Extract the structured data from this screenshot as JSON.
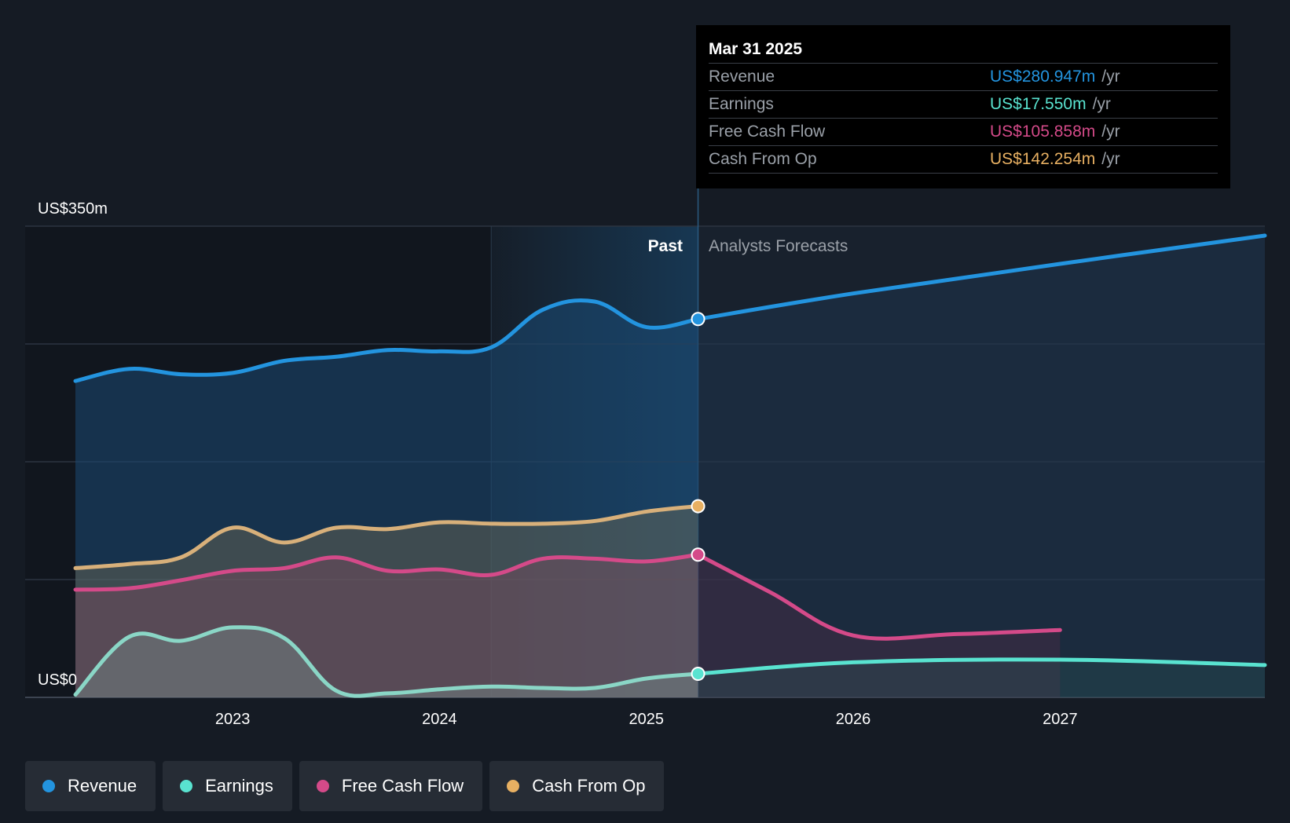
{
  "tooltip": {
    "date": "Mar 31 2025",
    "rows": [
      {
        "label": "Revenue",
        "value": "US$280.947m",
        "unit": "/yr",
        "color": "#2394df"
      },
      {
        "label": "Earnings",
        "value": "US$17.550m",
        "unit": "/yr",
        "color": "#59e3d0"
      },
      {
        "label": "Free Cash Flow",
        "value": "US$105.858m",
        "unit": "/yr",
        "color": "#d44a89"
      },
      {
        "label": "Cash From Op",
        "value": "US$142.254m",
        "unit": "/yr",
        "color": "#e8b062"
      }
    ]
  },
  "legend": [
    {
      "label": "Revenue",
      "color": "#2394df"
    },
    {
      "label": "Earnings",
      "color": "#59e3d0"
    },
    {
      "label": "Free Cash Flow",
      "color": "#d44a89"
    },
    {
      "label": "Cash From Op",
      "color": "#e8b062"
    }
  ],
  "chart_data": {
    "type": "line",
    "y_top_label": "US$350m",
    "y_bottom_label": "US$0",
    "ylim": [
      0,
      350
    ],
    "xlim": [
      2022.24,
      2027.99
    ],
    "x_ticks": [
      2023,
      2024,
      2025,
      2026,
      2027
    ],
    "past_label": "Past",
    "forecast_label": "Analysts Forecasts",
    "divider_x": 2025.25,
    "highlight_start_x": 2024.25,
    "grid": true,
    "series": [
      {
        "name": "Revenue",
        "color": "#2394df",
        "past": [
          [
            2022.24,
            235
          ],
          [
            2022.5,
            244
          ],
          [
            2022.75,
            240
          ],
          [
            2023.0,
            241
          ],
          [
            2023.25,
            250
          ],
          [
            2023.5,
            253
          ],
          [
            2023.75,
            258
          ],
          [
            2024.0,
            257
          ],
          [
            2024.25,
            260
          ],
          [
            2024.5,
            288
          ],
          [
            2024.75,
            294
          ],
          [
            2025.0,
            275
          ],
          [
            2025.25,
            281
          ]
        ],
        "forecast": [
          [
            2025.25,
            281
          ],
          [
            2026.0,
            300
          ],
          [
            2027.0,
            322
          ],
          [
            2027.99,
            343
          ]
        ]
      },
      {
        "name": "Earnings",
        "color": "#59e3d0",
        "past": [
          [
            2022.24,
            2
          ],
          [
            2022.5,
            45
          ],
          [
            2022.75,
            42
          ],
          [
            2023.0,
            52
          ],
          [
            2023.25,
            44
          ],
          [
            2023.5,
            5
          ],
          [
            2023.75,
            3
          ],
          [
            2024.0,
            6
          ],
          [
            2024.25,
            8
          ],
          [
            2024.5,
            7
          ],
          [
            2024.75,
            7
          ],
          [
            2025.0,
            14
          ],
          [
            2025.25,
            17.5
          ]
        ],
        "forecast": [
          [
            2025.25,
            17.5
          ],
          [
            2026.0,
            26
          ],
          [
            2027.0,
            28
          ],
          [
            2027.99,
            24
          ]
        ]
      },
      {
        "name": "Free Cash Flow",
        "color": "#d44a89",
        "past": [
          [
            2022.24,
            80
          ],
          [
            2022.5,
            81
          ],
          [
            2022.75,
            87
          ],
          [
            2023.0,
            94
          ],
          [
            2023.25,
            96
          ],
          [
            2023.5,
            104
          ],
          [
            2023.75,
            94
          ],
          [
            2024.0,
            95
          ],
          [
            2024.25,
            91
          ],
          [
            2024.5,
            103
          ],
          [
            2024.75,
            103
          ],
          [
            2025.0,
            101
          ],
          [
            2025.25,
            106
          ]
        ],
        "forecast": [
          [
            2025.25,
            106
          ],
          [
            2025.6,
            78
          ],
          [
            2026.0,
            46
          ],
          [
            2026.5,
            47
          ],
          [
            2027.0,
            50
          ]
        ]
      },
      {
        "name": "Cash From Op",
        "color": "#e8b062",
        "past": [
          [
            2022.24,
            96
          ],
          [
            2022.5,
            99
          ],
          [
            2022.75,
            104
          ],
          [
            2023.0,
            126
          ],
          [
            2023.25,
            115
          ],
          [
            2023.5,
            126
          ],
          [
            2023.75,
            125
          ],
          [
            2024.0,
            130
          ],
          [
            2024.25,
            129
          ],
          [
            2024.5,
            129
          ],
          [
            2024.75,
            131
          ],
          [
            2025.0,
            138
          ],
          [
            2025.25,
            142
          ]
        ],
        "forecast": []
      }
    ]
  }
}
